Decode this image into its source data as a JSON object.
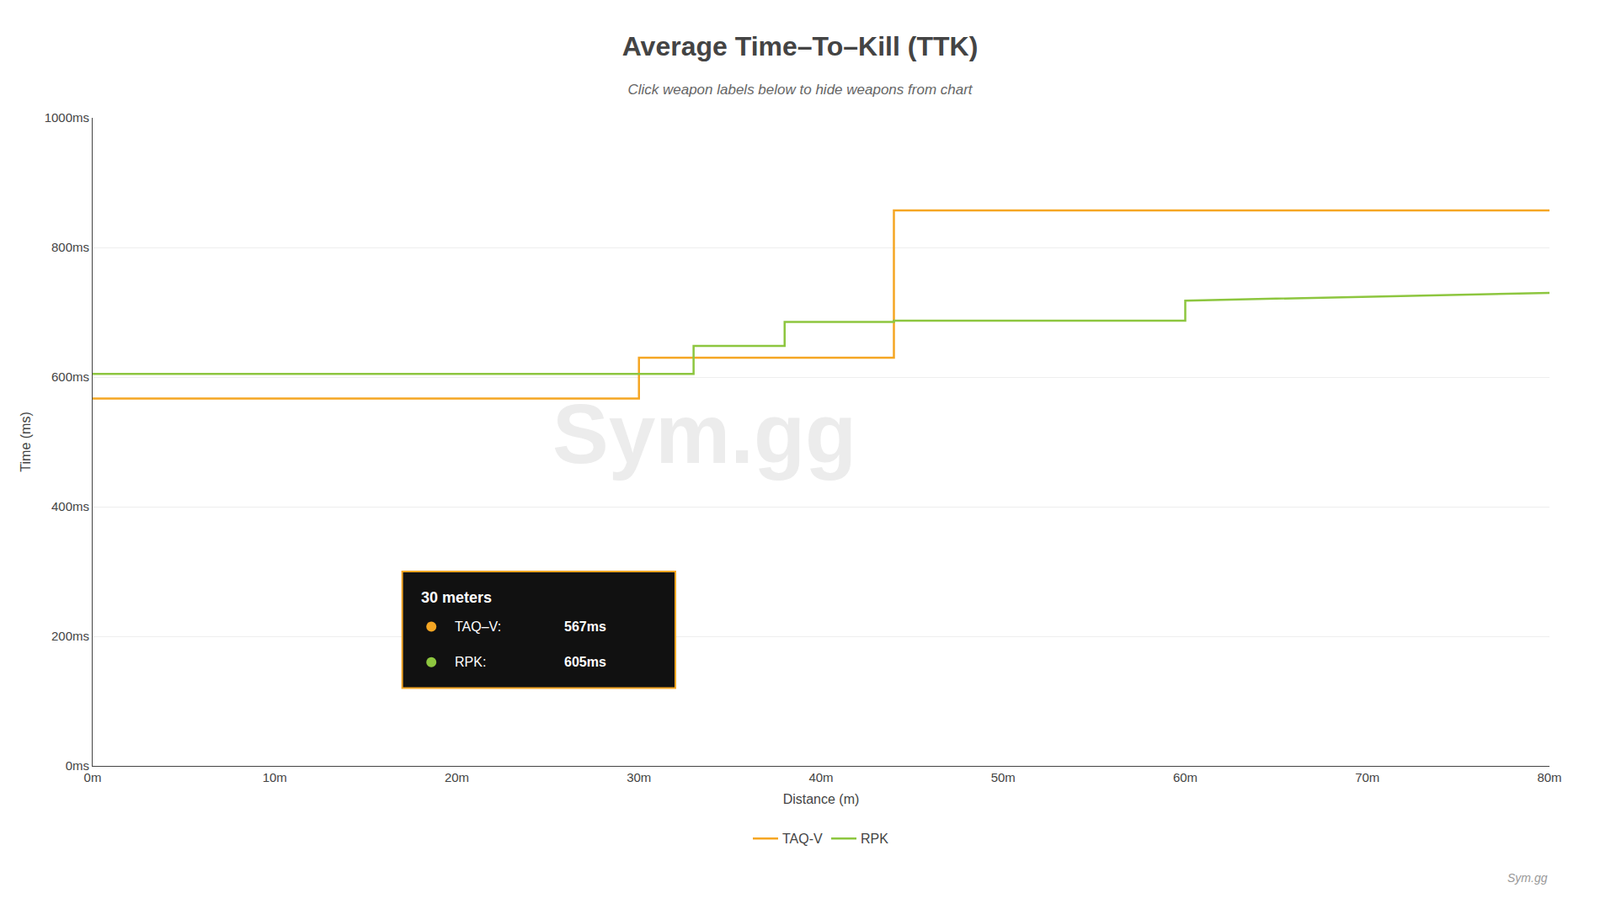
{
  "chart_data": {
    "type": "line",
    "title": "Average Time–To–Kill (TTK)",
    "subtitle": "Click weapon labels below to hide weapons from chart",
    "xlabel": "Distance (m)",
    "ylabel": "Time (ms)",
    "series": [
      {
        "name": "TAQ-V",
        "color": "#f5a623",
        "x": [
          0,
          30,
          30,
          44,
          44,
          80
        ],
        "values": [
          567,
          567,
          630,
          630,
          857,
          857
        ]
      },
      {
        "name": "RPK",
        "color": "#8dc63f",
        "x": [
          0,
          33,
          33,
          38,
          38,
          44,
          44,
          60,
          60,
          80
        ],
        "values": [
          605,
          605,
          648,
          648,
          685,
          685,
          687,
          687,
          718,
          730
        ]
      }
    ],
    "xlim": [
      0,
      80
    ],
    "xticks": [
      {
        "value": 0,
        "label": "0m"
      },
      {
        "value": 10,
        "label": "10m"
      },
      {
        "value": 20,
        "label": "20m"
      },
      {
        "value": 30,
        "label": "30m"
      },
      {
        "value": 40,
        "label": "40m"
      },
      {
        "value": 50,
        "label": "50m"
      },
      {
        "value": 60,
        "label": "60m"
      },
      {
        "value": 70,
        "label": "70m"
      },
      {
        "value": 80,
        "label": "80m"
      }
    ],
    "ylim": [
      0,
      1000
    ],
    "yticks": [
      {
        "value": 0,
        "label": "0ms"
      },
      {
        "value": 200,
        "label": "200ms"
      },
      {
        "value": 400,
        "label": "400ms"
      },
      {
        "value": 600,
        "label": "600ms"
      },
      {
        "value": 800,
        "label": "800ms"
      },
      {
        "value": 1000,
        "label": "1000ms"
      }
    ],
    "grid": "y",
    "legend": "bottom",
    "annotations": [
      "30 meters",
      "TAQ–V:",
      "567ms",
      "RPK:",
      "605ms",
      "Sym.gg",
      "Sym.gg"
    ]
  }
}
